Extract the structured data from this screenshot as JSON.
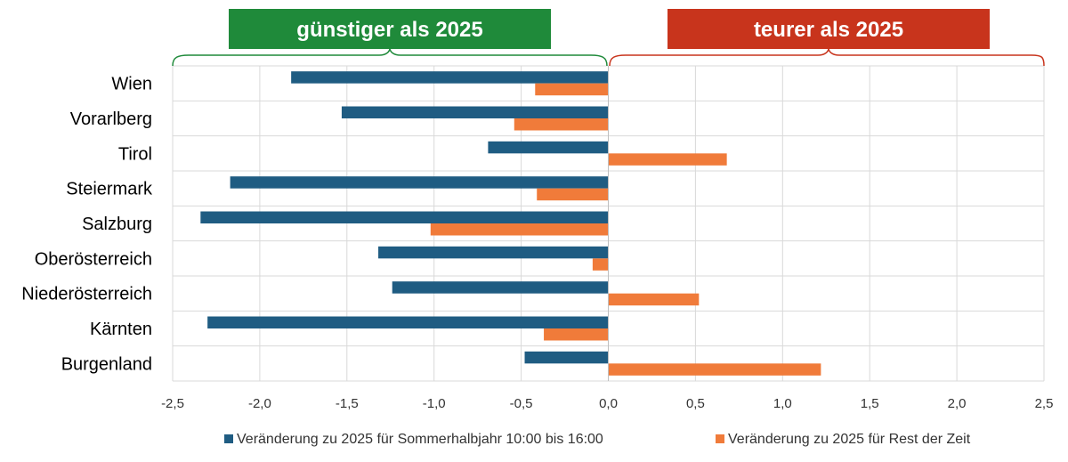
{
  "colors": {
    "series1": "#1f5c82",
    "series2": "#f07b3a",
    "cheaper_badge": "#1f8a3a",
    "pricier_badge": "#c8341c",
    "grid": "#d9d9d9"
  },
  "annotations": {
    "cheaper": "günstiger als 2025",
    "pricier": "teurer als 2025"
  },
  "chart_data": {
    "type": "bar",
    "orientation": "horizontal",
    "categories": [
      "Wien",
      "Vorarlberg",
      "Tirol",
      "Steiermark",
      "Salzburg",
      "Oberösterreich",
      "Niederösterreich",
      "Kärnten",
      "Burgenland"
    ],
    "series": [
      {
        "name": "Veränderung zu 2025 für Sommerhalbjahr 10:00 bis 16:00",
        "values": [
          -1.82,
          -1.53,
          -0.69,
          -2.17,
          -2.34,
          -1.32,
          -1.24,
          -2.3,
          -0.48
        ]
      },
      {
        "name": "Veränderung zu 2025 für Rest der Zeit",
        "values": [
          -0.42,
          -0.54,
          0.68,
          -0.41,
          -1.02,
          -0.09,
          0.52,
          -0.37,
          1.22
        ]
      }
    ],
    "xlim": [
      -2.5,
      2.5
    ],
    "xticks": [
      -2.5,
      -2.0,
      -1.5,
      -1.0,
      -0.5,
      0.0,
      0.5,
      1.0,
      1.5,
      2.0,
      2.5
    ],
    "xtick_labels": [
      "-2,5",
      "-2,0",
      "-1,5",
      "-1,0",
      "-0,5",
      "0,0",
      "0,5",
      "1,0",
      "1,5",
      "2,0",
      "2,5"
    ],
    "grid": true,
    "legend_position": "bottom"
  }
}
